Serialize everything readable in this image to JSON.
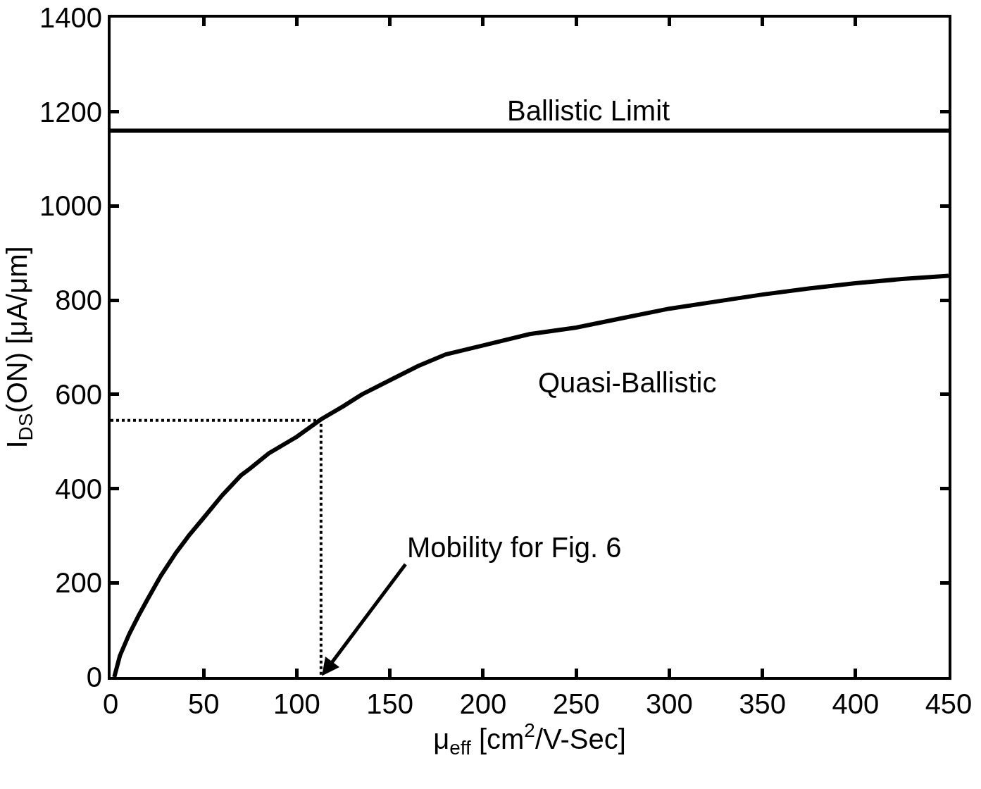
{
  "chart_data": {
    "type": "line",
    "xlabel": "μ$_{eff}$ [cm$^{2}$/V-Sec]",
    "ylabel": "I$_{DS}$(ON) [μA/μm]",
    "xlim": [
      0,
      450
    ],
    "xticks": [
      0,
      50,
      100,
      150,
      200,
      250,
      300,
      350,
      400,
      450
    ],
    "ylim": [
      0,
      1400
    ],
    "yticks": [
      0,
      200,
      400,
      600,
      800,
      1000,
      1200,
      1400
    ],
    "grid": false,
    "legend": false,
    "marker": "none",
    "series": [
      {
        "name": "Quasi-Ballistic",
        "color": "#000000",
        "line_style": "solid",
        "x": [
          2,
          5,
          10,
          15,
          20,
          27,
          35,
          42,
          50,
          60,
          70,
          75,
          85,
          100,
          113,
          125,
          135,
          150,
          165,
          180,
          200,
          225,
          250,
          275,
          300,
          325,
          350,
          375,
          400,
          425,
          450
        ],
        "values": [
          0,
          45,
          91,
          130,
          166,
          215,
          263,
          300,
          338,
          386,
          428,
          443,
          475,
          510,
          547,
          575,
          600,
          630,
          660,
          685,
          704,
          728,
          742,
          762,
          782,
          797,
          812,
          825,
          836,
          845,
          852
        ]
      },
      {
        "color": "#000000",
        "line_style": "dotted",
        "x": [
          0,
          113,
          113
        ],
        "values": [
          545,
          545,
          0
        ]
      }
    ],
    "ref_lines": [
      {
        "axis": "y",
        "value": 1160,
        "label": "Ballistic Limit",
        "color": "#000000",
        "line_style": "solid"
      }
    ],
    "annotations": [
      {
        "text": "Mobility for Fig. 6",
        "x": 113,
        "y": 0
      }
    ]
  }
}
